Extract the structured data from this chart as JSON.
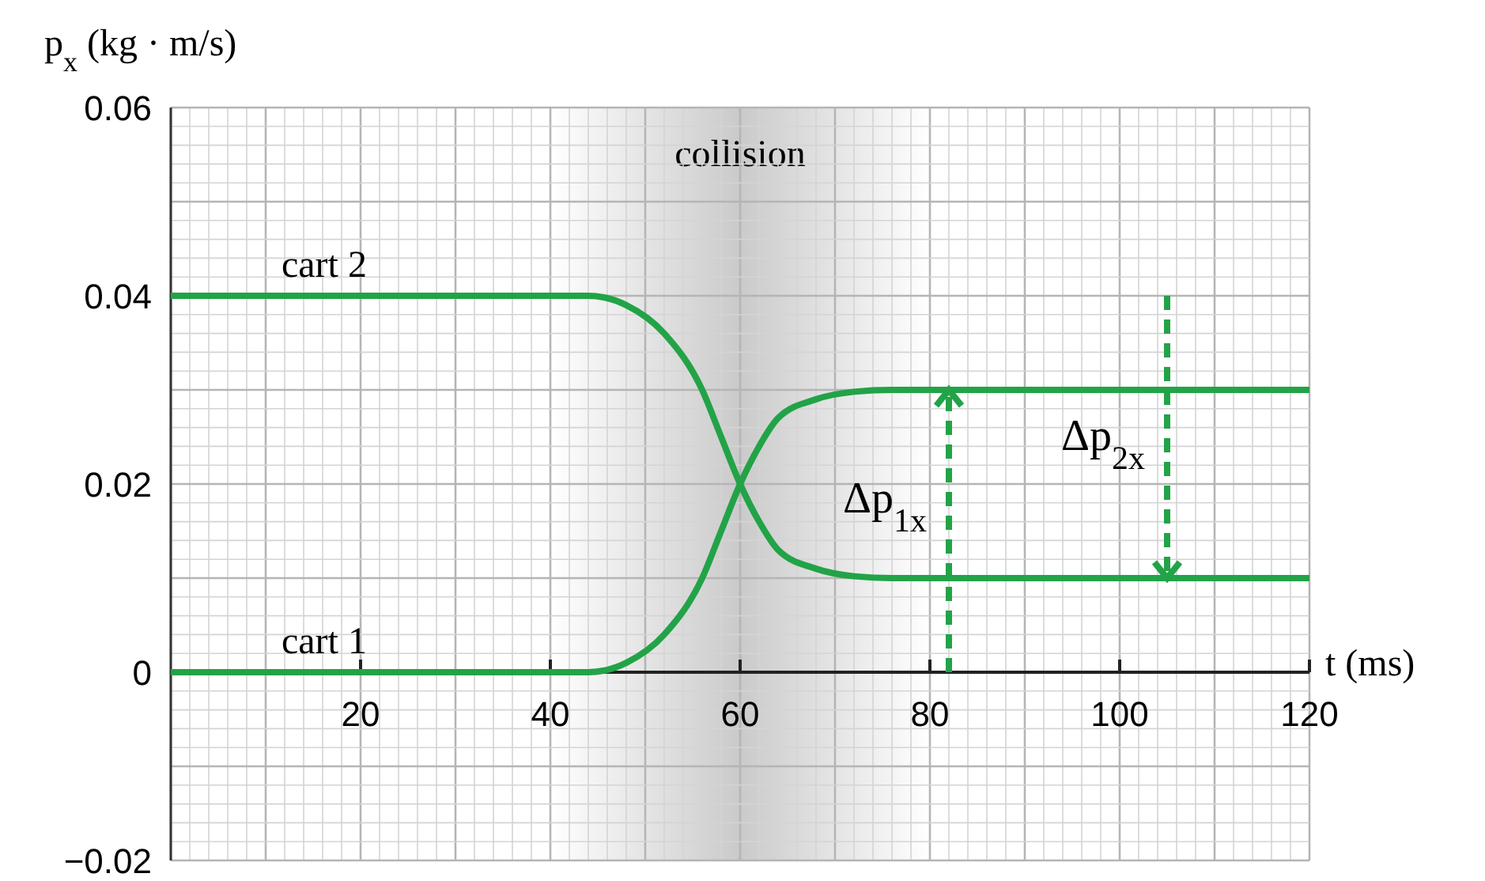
{
  "chart_data": {
    "type": "line",
    "xlabel": "t (ms)",
    "ylabel": "p$_{x}$ (kg · m/s)",
    "x": [
      0,
      40,
      44,
      48,
      52,
      56,
      58,
      60,
      62,
      64,
      68,
      72,
      76,
      80,
      120
    ],
    "series": [
      {
        "name": "cart 1",
        "color": "#22a347",
        "values": [
          0,
          0,
          0,
          0.001,
          0.004,
          0.01,
          0.015,
          0.02,
          0.024,
          0.027,
          0.029,
          0.0298,
          0.03,
          0.03,
          0.03
        ]
      },
      {
        "name": "cart 2",
        "color": "#22a347",
        "values": [
          0.04,
          0.04,
          0.04,
          0.039,
          0.036,
          0.03,
          0.025,
          0.02,
          0.016,
          0.013,
          0.011,
          0.0102,
          0.01,
          0.01,
          0.01
        ]
      }
    ],
    "xlim": [
      0,
      120
    ],
    "xticks": [
      20,
      40,
      60,
      80,
      100,
      120
    ],
    "ylim": [
      -0.02,
      0.06
    ],
    "yticks": [
      {
        "value": -0.02,
        "label": "−0.02"
      },
      0,
      0.02,
      0.04,
      0.06
    ],
    "bands": [
      {
        "axis": "x",
        "from": 40,
        "to": 80,
        "label": "collision",
        "color": "#bdbdbd"
      }
    ],
    "ref_lines": [
      {
        "axis": "x",
        "value": 82,
        "label": "Δp$_{1x}$",
        "color": "#22a347",
        "line_style": "dashed"
      },
      {
        "axis": "x",
        "value": 105,
        "label": "Δp$_{2x}$",
        "color": "#22a347",
        "line_style": "dashed"
      }
    ],
    "grid": true,
    "marker": "none",
    "line_style": "solid"
  }
}
